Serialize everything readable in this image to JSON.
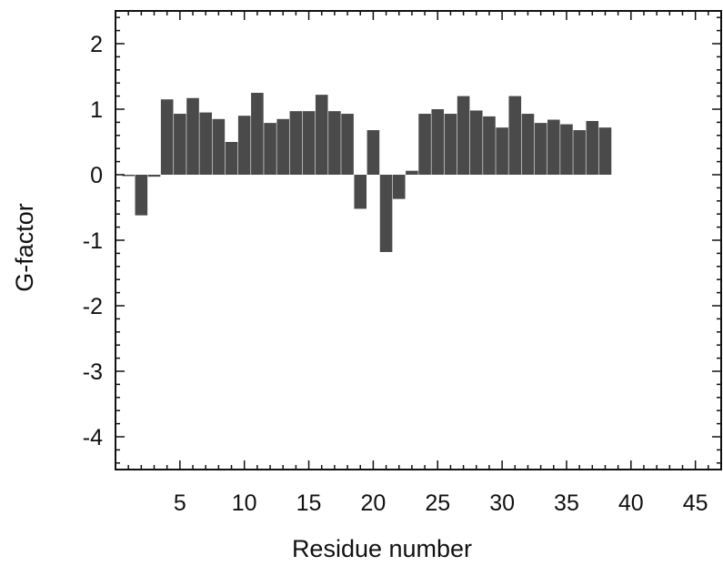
{
  "chart_data": {
    "type": "bar",
    "title": "",
    "xlabel": "Residue number",
    "ylabel": "G-factor",
    "xlim": [
      0,
      47
    ],
    "ylim": [
      -4.5,
      2.5
    ],
    "x_ticks": [
      5,
      10,
      15,
      20,
      25,
      30,
      35,
      40,
      45
    ],
    "y_ticks": [
      2,
      1,
      0,
      -1,
      -2,
      -3,
      -4
    ],
    "y_tick_labels": [
      "2",
      "1",
      "0",
      "-1",
      "-2",
      "-3",
      "-4"
    ],
    "bar_color": "#4a4a4a",
    "grid": false,
    "x": [
      1,
      2,
      3,
      4,
      5,
      6,
      7,
      8,
      9,
      10,
      11,
      12,
      13,
      14,
      15,
      16,
      17,
      18,
      19,
      20,
      21,
      22,
      23,
      24,
      25,
      26,
      27,
      28,
      29,
      30,
      31,
      32,
      33,
      34,
      35,
      36,
      37,
      38
    ],
    "values": [
      -0.02,
      -0.62,
      -0.03,
      1.15,
      0.93,
      1.17,
      0.95,
      0.85,
      0.5,
      0.9,
      1.25,
      0.79,
      0.85,
      0.97,
      0.97,
      1.22,
      0.97,
      0.93,
      -0.52,
      0.68,
      -1.18,
      -0.37,
      0.06,
      0.93,
      1.0,
      0.93,
      1.2,
      0.98,
      0.89,
      0.72,
      1.2,
      0.93,
      0.79,
      0.84,
      0.77,
      0.68,
      0.82,
      0.72
    ]
  }
}
